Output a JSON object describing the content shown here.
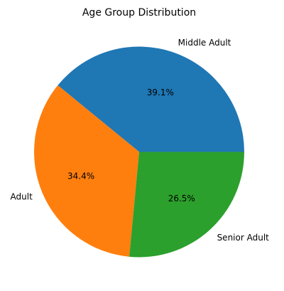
{
  "chart_data": {
    "type": "pie",
    "title": "Age Group Distribution",
    "labels": [
      "Middle Adult",
      "Adult",
      "Senior Adult"
    ],
    "values": [
      39.1,
      34.4,
      26.5
    ],
    "value_labels": [
      "39.1%",
      "34.4%",
      "26.5%"
    ],
    "colors": [
      "#1f77b4",
      "#ff7f0e",
      "#2ca02c"
    ],
    "start_angle_deg": 0,
    "direction": "counterclockwise"
  }
}
